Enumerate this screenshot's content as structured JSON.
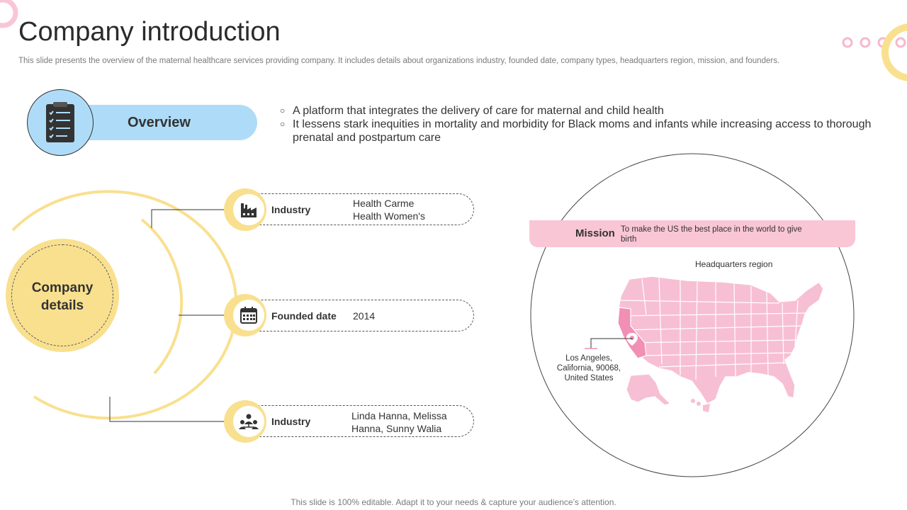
{
  "header": {
    "title": "Company introduction",
    "subtitle": "This slide presents the overview of the maternal healthcare services providing company. It includes details about organizations industry, founded date, company types, headquarters region, mission, and founders."
  },
  "overview": {
    "label": "Overview",
    "bullets": [
      "A platform that integrates the delivery of care for maternal and child health",
      "It lessens stark inequities in mortality and morbidity for Black moms and infants while increasing access to thorough prenatal and postpartum care"
    ]
  },
  "details": {
    "center_label_line1": "Company",
    "center_label_line2": "details",
    "items": [
      {
        "label": "Industry",
        "value_line1": "Health Carme",
        "value_line2": "Health Women's",
        "icon": "factory-icon"
      },
      {
        "label": "Founded date",
        "value_line1": "2014",
        "icon": "calendar-icon"
      },
      {
        "label": "Industry",
        "value_line1": "Linda Hanna, Melissa",
        "value_line2": "Hanna, Sunny Walia",
        "icon": "team-icon"
      }
    ]
  },
  "mission": {
    "label": "Mission",
    "text": "To make the US the best place in the world to give birth"
  },
  "headquarters": {
    "label": "Headquarters  region",
    "location_line1": "Los Angeles,",
    "location_line2": "California, 90068,",
    "location_line3": "United States"
  },
  "footer": {
    "text": "This slide is 100% editable. Adapt it to your needs & capture your audience’s attention."
  },
  "colors": {
    "yellow": "#f9e08f",
    "blue": "#aedcf8",
    "pink": "#f9c6d6",
    "map_pink": "#f7bfd3",
    "highlight_pink": "#f28fb5"
  }
}
